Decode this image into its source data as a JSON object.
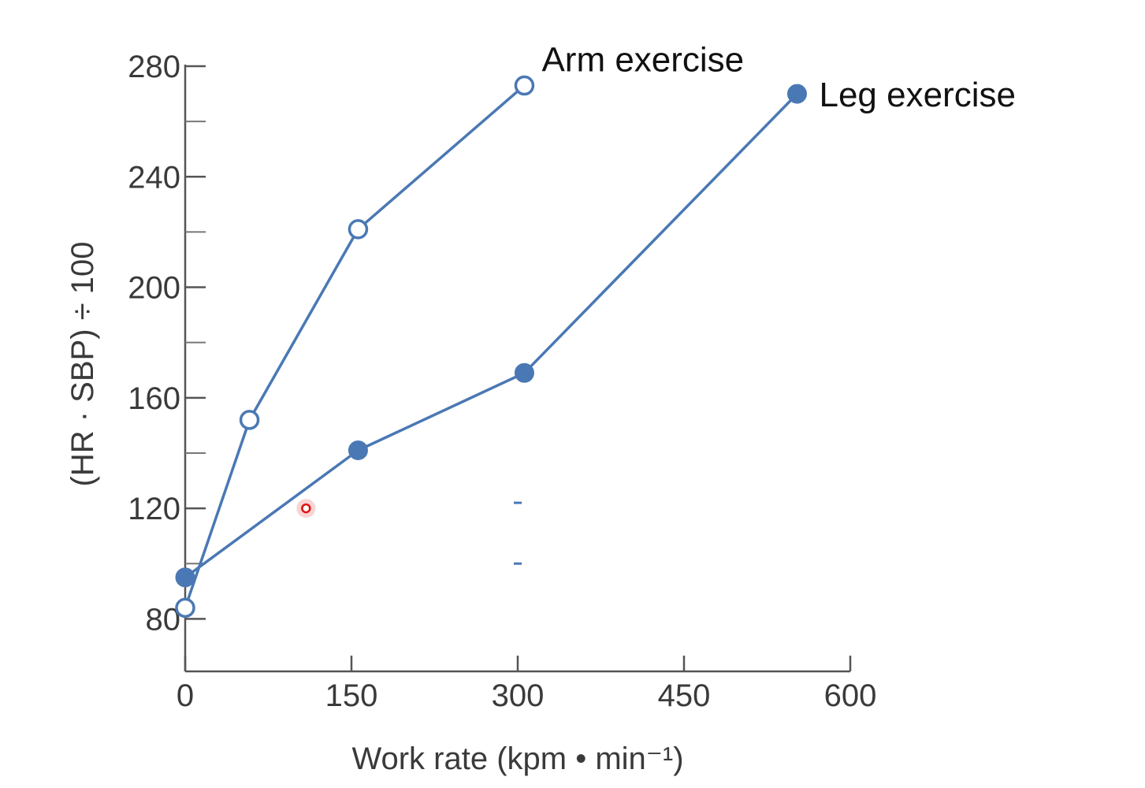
{
  "chart_data": {
    "type": "line",
    "title": "",
    "xlabel": "Work rate (kpm • min⁻¹)",
    "ylabel": "(HR · SBP) ÷ 100",
    "xlim": [
      0,
      600
    ],
    "ylim": [
      61,
      280
    ],
    "xticks": [
      0,
      150,
      300,
      450,
      600
    ],
    "yticks": [
      80,
      120,
      160,
      200,
      240,
      280
    ],
    "yminor": [
      100,
      140,
      180,
      220,
      260
    ],
    "grid": false,
    "colors": {
      "series": "#4a78b4",
      "axis": "#555555",
      "marker_fill_open": "#ffffff",
      "cursor": "#e01010"
    },
    "series": [
      {
        "name": "Arm exercise",
        "marker": "open-circle",
        "x": [
          0,
          58,
          156,
          306
        ],
        "y": [
          84,
          152,
          221,
          273
        ]
      },
      {
        "name": "Leg exercise",
        "marker": "filled-circle",
        "x": [
          0,
          156,
          306,
          552
        ],
        "y": [
          95,
          141,
          169,
          270
        ]
      }
    ],
    "annotations": [
      {
        "kind": "dash",
        "x": 300,
        "y": 122
      },
      {
        "kind": "dash",
        "x": 300,
        "y": 100
      },
      {
        "kind": "cursor",
        "x": 109,
        "y": 120
      }
    ]
  }
}
